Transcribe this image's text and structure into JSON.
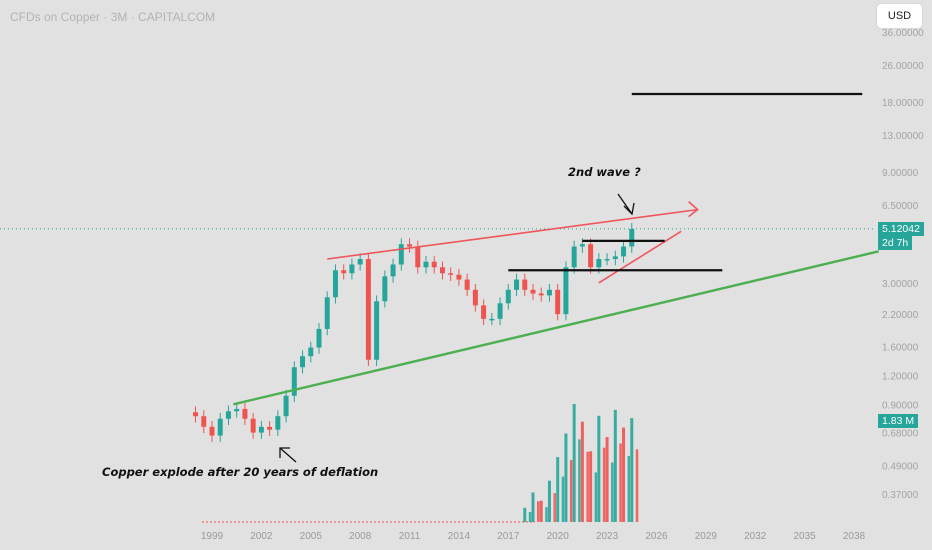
{
  "header": {
    "symbol_title": "CFDs on Copper · 3M · CAPITALCOM"
  },
  "currency_button": {
    "label": "USD"
  },
  "price_tags": {
    "last_price": "5.12042",
    "countdown": "2d 7h",
    "volume": "1.83 M",
    "price_color": "#26a69a",
    "volume_color": "#26a69a"
  },
  "annotations": {
    "wave_label": "2nd wave ?",
    "bottom_label": "Copper explode after 20 years of deflation"
  },
  "colors": {
    "background": "#e1e1e1",
    "up_candle": "#26a69a",
    "down_candle": "#ef5350",
    "resistance_line": "#f0555a",
    "support_line": "#4caf50",
    "level_line": "#111111",
    "price_line": "#26a69a"
  },
  "chart_data": {
    "type": "candlestick",
    "scale": "log",
    "x_ticks": [
      "1999",
      "2002",
      "2005",
      "2008",
      "2011",
      "2014",
      "2017",
      "2020",
      "2023",
      "2026",
      "2029",
      "2032",
      "2035",
      "2038"
    ],
    "y_ticks": [
      "36.00000",
      "26.00000",
      "18.00000",
      "13.00000",
      "9.00000",
      "6.50000",
      "5.12042",
      "3.00000",
      "2.20000",
      "1.60000",
      "1.20000",
      "0.90000",
      "0.68000",
      "0.49000",
      "0.37000"
    ],
    "y_tick_values": [
      36,
      26,
      18,
      13,
      9,
      6.5,
      3.0,
      2.2,
      1.6,
      1.2,
      0.9,
      0.68,
      0.49,
      0.37
    ],
    "last_price": 5.12042,
    "quarterly_closes": [
      [
        "1998.00",
        0.8
      ],
      [
        "1998.50",
        0.72
      ],
      [
        "1999.00",
        0.66
      ],
      [
        "1999.50",
        0.78
      ],
      [
        "2000.00",
        0.84
      ],
      [
        "2000.50",
        0.86
      ],
      [
        "2001.00",
        0.78
      ],
      [
        "2001.50",
        0.68
      ],
      [
        "2002.00",
        0.72
      ],
      [
        "2002.50",
        0.7
      ],
      [
        "2003.00",
        0.8
      ],
      [
        "2003.50",
        0.98
      ],
      [
        "2004.00",
        1.3
      ],
      [
        "2004.50",
        1.45
      ],
      [
        "2005.00",
        1.58
      ],
      [
        "2005.50",
        1.9
      ],
      [
        "2006.00",
        2.6
      ],
      [
        "2006.50",
        3.4
      ],
      [
        "2007.00",
        3.3
      ],
      [
        "2007.50",
        3.6
      ],
      [
        "2008.00",
        3.8
      ],
      [
        "2008.50",
        1.4
      ],
      [
        "2009.00",
        2.5
      ],
      [
        "2009.50",
        3.2
      ],
      [
        "2010.00",
        3.6
      ],
      [
        "2010.50",
        4.4
      ],
      [
        "2011.00",
        4.3
      ],
      [
        "2011.50",
        3.5
      ],
      [
        "2012.00",
        3.7
      ],
      [
        "2012.50",
        3.5
      ],
      [
        "2013.00",
        3.3
      ],
      [
        "2013.50",
        3.25
      ],
      [
        "2014.00",
        3.1
      ],
      [
        "2014.50",
        2.8
      ],
      [
        "2015.00",
        2.4
      ],
      [
        "2015.50",
        2.1
      ],
      [
        "2016.00",
        2.1
      ],
      [
        "2016.50",
        2.45
      ],
      [
        "2017.00",
        2.8
      ],
      [
        "2017.50",
        3.1
      ],
      [
        "2018.00",
        2.8
      ],
      [
        "2018.50",
        2.7
      ],
      [
        "2019.00",
        2.65
      ],
      [
        "2019.50",
        2.8
      ],
      [
        "2020.00",
        2.2
      ],
      [
        "2020.50",
        3.5
      ],
      [
        "2021.00",
        4.3
      ],
      [
        "2021.50",
        4.4
      ],
      [
        "2022.00",
        3.5
      ],
      [
        "2022.50",
        3.8
      ],
      [
        "2023.00",
        3.8
      ],
      [
        "2023.50",
        3.9
      ],
      [
        "2024.00",
        4.3
      ],
      [
        "2024.50",
        5.12
      ]
    ],
    "volume_bars": [
      [
        "2018.00",
        0.12
      ],
      [
        "2018.50",
        0.25
      ],
      [
        "2019.00",
        0.18
      ],
      [
        "2019.50",
        0.35
      ],
      [
        "2020.00",
        0.55
      ],
      [
        "2020.50",
        0.75
      ],
      [
        "2021.00",
        1.0
      ],
      [
        "2021.50",
        0.85
      ],
      [
        "2022.00",
        0.6
      ],
      [
        "2022.50",
        0.9
      ],
      [
        "2023.00",
        0.72
      ],
      [
        "2023.50",
        0.95
      ],
      [
        "2024.00",
        0.8
      ],
      [
        "2024.50",
        0.88
      ]
    ],
    "trendlines": {
      "red_resistance": [
        [
          "2006.00",
          3.8
        ],
        [
          "2028.50",
          6.2
        ]
      ],
      "red_short": [
        [
          "2022.50",
          3.0
        ],
        [
          "2027.50",
          5.0
        ]
      ],
      "green_support": [
        [
          "2000.30",
          0.9
        ],
        [
          "2039.50",
          4.1
        ]
      ]
    },
    "levels": [
      {
        "value": 19.5,
        "x_from": "2024.50",
        "x_to": "2038.50"
      },
      {
        "value": 4.55,
        "x_from": "2021.50",
        "x_to": "2026.50"
      },
      {
        "value": 3.4,
        "x_from": "2017.00",
        "x_to": "2030.00"
      }
    ]
  }
}
